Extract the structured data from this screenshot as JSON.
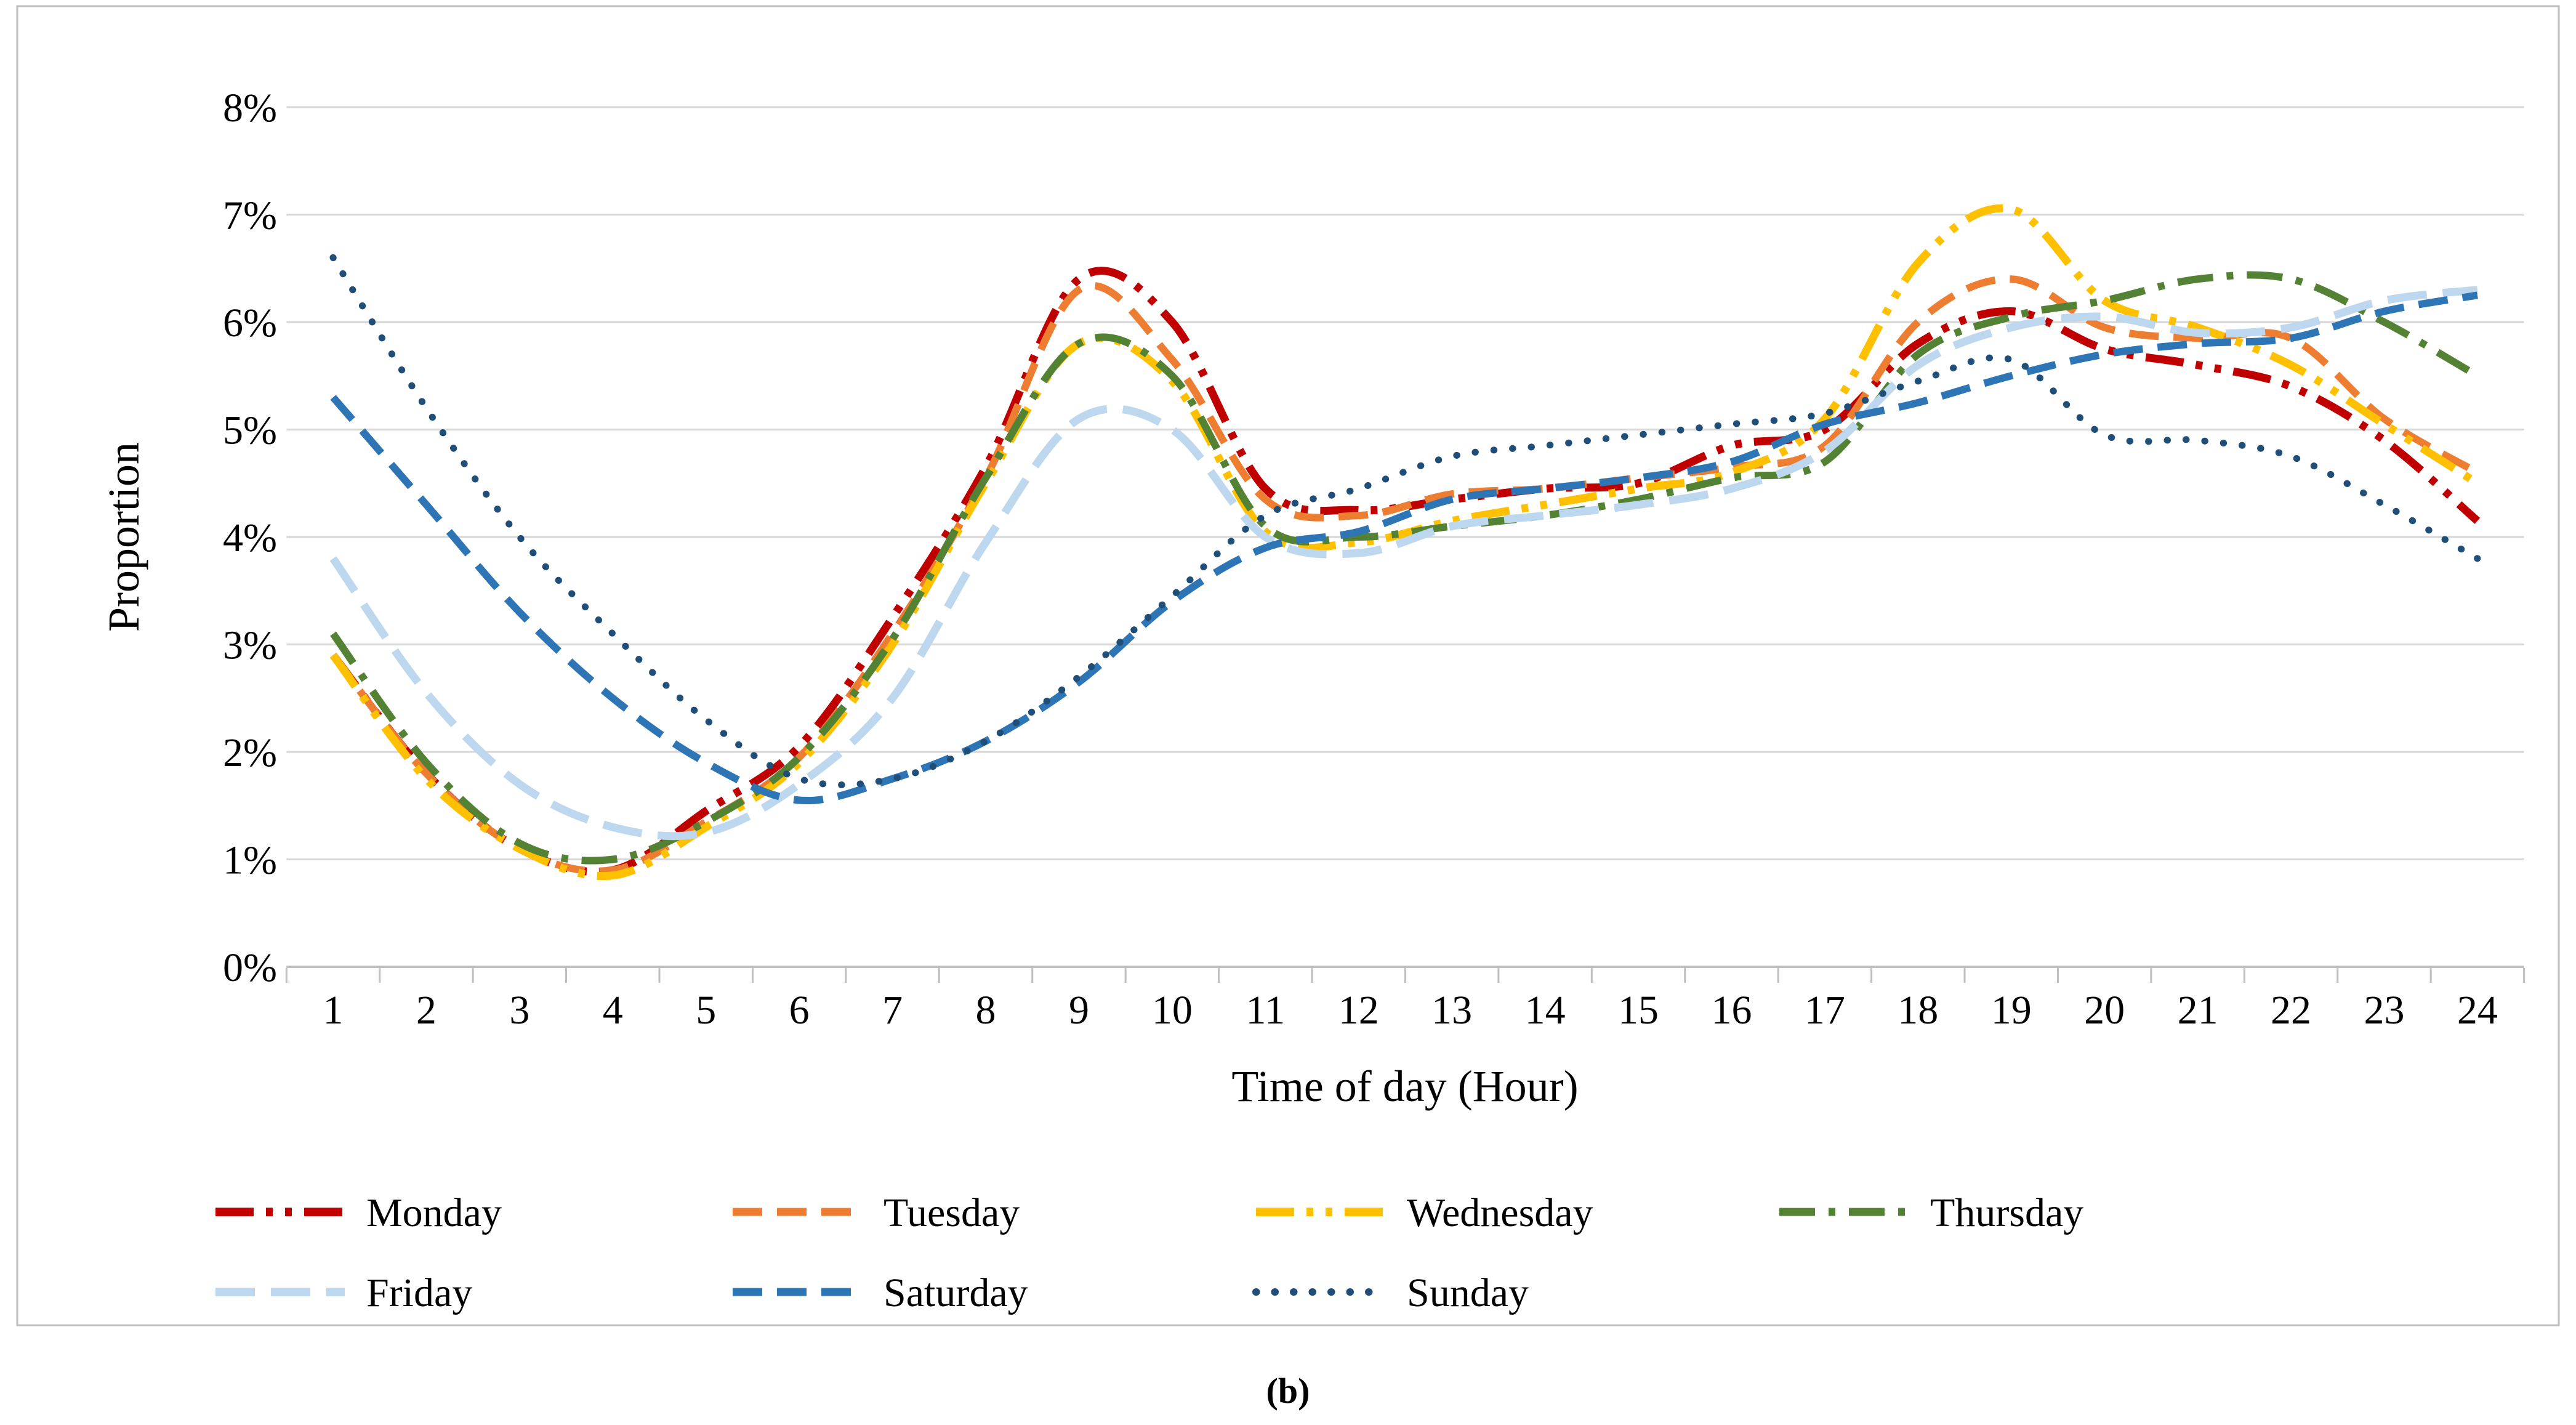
{
  "figure": {
    "caption": "(b)"
  },
  "chart_data": {
    "type": "line",
    "title": "",
    "xlabel": "Time of day (Hour)",
    "ylabel": "Proportion",
    "x": [
      1,
      2,
      3,
      4,
      5,
      6,
      7,
      8,
      9,
      10,
      11,
      12,
      13,
      14,
      15,
      16,
      17,
      18,
      19,
      20,
      21,
      22,
      23,
      24
    ],
    "y_tick_labels": [
      "0%",
      "1%",
      "2%",
      "3%",
      "4%",
      "5%",
      "6%",
      "7%",
      "8%"
    ],
    "ylim": [
      0,
      8
    ],
    "grid": true,
    "legend_position": "bottom",
    "series": [
      {
        "name": "Monday",
        "color": "#C00000",
        "dash": "dash-dot-dot",
        "values": [
          2.9,
          1.8,
          1.1,
          0.9,
          1.45,
          2.05,
          3.25,
          4.65,
          6.4,
          6.0,
          4.45,
          4.25,
          4.35,
          4.45,
          4.5,
          4.85,
          5.0,
          5.8,
          6.1,
          5.75,
          5.6,
          5.4,
          4.9,
          4.15
        ]
      },
      {
        "name": "Tuesday",
        "color": "#ED7D31",
        "dash": "dash",
        "values": [
          2.9,
          1.8,
          1.1,
          0.9,
          1.35,
          1.95,
          3.1,
          4.55,
          6.3,
          5.65,
          4.35,
          4.2,
          4.4,
          4.45,
          4.55,
          4.65,
          4.85,
          6.0,
          6.4,
          5.95,
          5.85,
          5.85,
          5.1,
          4.6
        ]
      },
      {
        "name": "Wednesday",
        "color": "#FFC000",
        "dash": "dash-dot-dot",
        "values": [
          2.9,
          1.75,
          1.1,
          0.85,
          1.3,
          1.9,
          3.0,
          4.5,
          5.8,
          5.45,
          4.05,
          3.95,
          4.15,
          4.3,
          4.45,
          4.6,
          5.1,
          6.55,
          7.05,
          6.2,
          5.95,
          5.6,
          5.05,
          4.5
        ]
      },
      {
        "name": "Thursday",
        "color": "#548235",
        "dash": "dash-dot",
        "values": [
          3.1,
          1.9,
          1.15,
          1.0,
          1.35,
          1.95,
          3.05,
          4.55,
          5.8,
          5.5,
          4.1,
          4.0,
          4.1,
          4.2,
          4.35,
          4.55,
          4.7,
          5.7,
          6.05,
          6.2,
          6.4,
          6.4,
          6.0,
          5.5
        ]
      },
      {
        "name": "Friday",
        "color": "#BDD7EE",
        "dash": "long-dash",
        "values": [
          3.8,
          2.55,
          1.7,
          1.3,
          1.25,
          1.7,
          2.5,
          3.95,
          5.1,
          5.0,
          4.0,
          3.85,
          4.1,
          4.2,
          4.3,
          4.45,
          4.8,
          5.6,
          5.95,
          6.05,
          5.9,
          5.95,
          6.2,
          6.3
        ]
      },
      {
        "name": "Saturday",
        "color": "#2E75B6",
        "dash": "dash",
        "values": [
          5.3,
          4.3,
          3.3,
          2.5,
          1.9,
          1.55,
          1.75,
          2.1,
          2.65,
          3.4,
          3.9,
          4.05,
          4.35,
          4.45,
          4.55,
          4.7,
          5.05,
          5.25,
          5.5,
          5.7,
          5.8,
          5.85,
          6.1,
          6.25
        ]
      },
      {
        "name": "Sunday",
        "color": "#1F4E79",
        "dash": "dot",
        "values": [
          6.6,
          5.2,
          4.0,
          3.1,
          2.3,
          1.75,
          1.75,
          2.1,
          2.7,
          3.45,
          4.2,
          4.45,
          4.75,
          4.85,
          4.95,
          5.05,
          5.15,
          5.45,
          5.65,
          4.95,
          4.9,
          4.75,
          4.3,
          3.8
        ]
      }
    ]
  }
}
